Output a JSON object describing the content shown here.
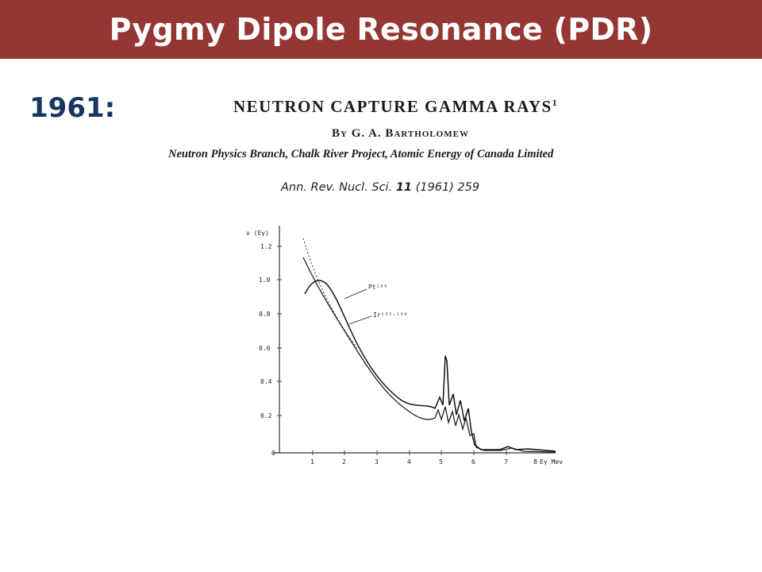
{
  "header": {
    "title": "Pygmy Dipole Resonance (PDR)",
    "bg_color": "#943634"
  },
  "year_label": "1961:",
  "paper": {
    "title": "NEUTRON CAPTURE GAMMA RAYS",
    "title_sup": "1",
    "author": "By G. A. Bartholomew",
    "affiliation": "Neutron Physics Branch, Chalk River Project, Atomic Energy of Canada Limited"
  },
  "citation": {
    "journal": "Ann. Rev. Nucl. Sci.",
    "volume": "11",
    "rest": "(1961) 259"
  },
  "figure": {
    "ylabel": "ν (Eγ)",
    "xlabel": "Eγ Mev",
    "xlabel_prefix": "8",
    "yticks": [
      "1.2",
      "1.0",
      "0.8",
      "0.6",
      "0.4",
      "0.2",
      "0"
    ],
    "xticks": [
      "1",
      "2",
      "3",
      "4",
      "5",
      "6",
      "7"
    ],
    "label_pt": "Pt¹⁹⁶",
    "label_ir": "Ir¹⁹²·¹⁹⁴"
  }
}
